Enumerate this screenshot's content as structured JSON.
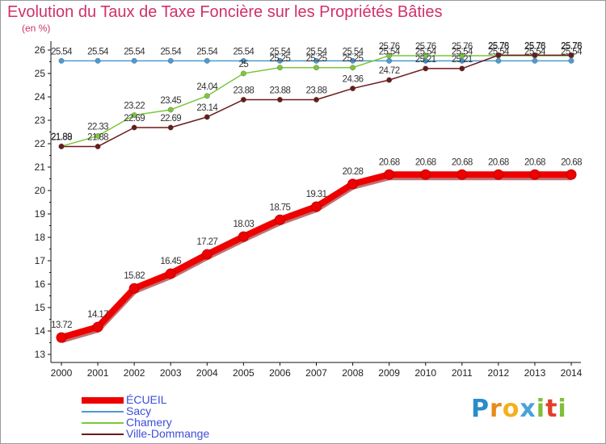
{
  "title": "Evolution du Taux de Taxe Foncière sur les Propriétés Bâties",
  "brand": "Proxiti",
  "chart_data": {
    "type": "line",
    "title": "Evolution du Taux de Taxe Foncière sur les Propriétés Bâties",
    "ylabel": "(en %)",
    "xlabel": "",
    "ylim": [
      13,
      26
    ],
    "yticks": [
      "13",
      "14",
      "15",
      "16",
      "17",
      "18",
      "19",
      "20",
      "21",
      "22",
      "23",
      "24",
      "25",
      "26"
    ],
    "categories": [
      "2000",
      "2001",
      "2002",
      "2003",
      "2004",
      "2005",
      "2006",
      "2007",
      "2008",
      "2009",
      "2010",
      "2011",
      "2012",
      "2013",
      "2014"
    ],
    "grid": false,
    "legend_position": "bottom-left",
    "series": [
      {
        "name": "ÉCUEIL",
        "color": "#ee0000",
        "values": [
          13.72,
          14.17,
          15.82,
          16.45,
          17.27,
          18.03,
          18.75,
          19.31,
          20.28,
          20.68,
          20.68,
          20.68,
          20.68,
          20.68,
          20.68
        ],
        "labels": [
          "13.72",
          "14.17",
          "15.82",
          "16.45",
          "17.27",
          "18.03",
          "18.75",
          "19.31",
          "20.28",
          "20.68",
          "20.68",
          "20.68",
          "20.68",
          "20.68",
          "20.68"
        ]
      },
      {
        "name": "Sacy",
        "color": "#4a9bd4",
        "values": [
          25.54,
          25.54,
          25.54,
          25.54,
          25.54,
          25.54,
          25.54,
          25.54,
          25.54,
          25.54,
          25.54,
          25.54,
          25.54,
          25.54,
          25.54
        ],
        "labels": [
          "25.54",
          "25.54",
          "25.54",
          "25.54",
          "25.54",
          "25.54",
          "25.54",
          "25.54",
          "25.54",
          "25.54",
          "25.54",
          "25.54",
          "25.54",
          "25.54",
          "25.54"
        ]
      },
      {
        "name": "Chamery",
        "color": "#7cc83a",
        "values": [
          21.89,
          22.33,
          23.22,
          23.45,
          24.04,
          25,
          25.25,
          25.25,
          25.25,
          25.76,
          25.76,
          25.76,
          25.76,
          25.76,
          25.76
        ],
        "labels": [
          "21.89",
          "22.33",
          "23.22",
          "23.45",
          "24.04",
          "25",
          "25.25",
          "25.25",
          "25.25",
          "25.76",
          "25.76",
          "25.76",
          "25.76",
          "25.76",
          "25.76"
        ]
      },
      {
        "name": "Ville-Dommange",
        "color": "#6b1a1a",
        "values": [
          21.88,
          21.88,
          22.69,
          22.69,
          23.14,
          23.88,
          23.88,
          23.88,
          24.36,
          24.72,
          25.21,
          25.21,
          25.78,
          25.78,
          25.78
        ],
        "labels": [
          "21.88",
          "21.88",
          "22.69",
          "22.69",
          "23.14",
          "23.88",
          "23.88",
          "23.88",
          "24.36",
          "24.72",
          "25.21",
          "25.21",
          "25.78",
          "25.78",
          "25.78"
        ]
      }
    ]
  }
}
